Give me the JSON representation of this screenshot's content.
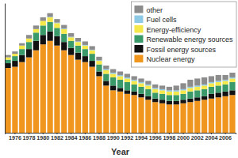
{
  "chart_data": {
    "type": "bar",
    "stacked": true,
    "x_label": "Year",
    "categories": [
      null,
      "1976",
      null,
      "1978",
      null,
      "1980",
      null,
      "1982",
      null,
      "1984",
      null,
      "1986",
      null,
      "1988",
      null,
      "1990",
      null,
      "1992",
      null,
      "1994",
      null,
      "1996",
      null,
      "1998",
      null,
      "2000",
      null,
      "2002",
      null,
      "2004",
      null,
      "2006",
      null
    ],
    "ylim": [
      0,
      110
    ],
    "tick_labels": "x",
    "legend": "upper right",
    "series": [
      {
        "name": "Nuclear energy",
        "color": "#f0961e",
        "values": [
          55,
          56,
          60,
          64,
          70,
          75,
          78,
          74,
          70,
          66,
          62,
          60,
          56,
          48,
          40,
          36,
          35,
          33,
          32,
          30,
          28,
          26,
          25,
          24,
          24,
          25,
          26,
          27,
          28,
          29,
          30,
          31,
          32
        ]
      },
      {
        "name": "Fossil energy sources",
        "color": "#111111",
        "values": [
          4,
          5,
          6,
          7,
          8,
          8,
          8,
          8,
          7,
          6,
          6,
          5,
          5,
          4,
          4,
          4,
          3,
          3,
          3,
          3,
          3,
          3,
          3,
          3,
          3,
          3,
          3,
          3,
          3,
          4,
          4,
          4,
          4
        ]
      },
      {
        "name": "Renewable energy sources",
        "color": "#3a9a6a",
        "values": [
          3,
          4,
          5,
          6,
          7,
          8,
          8,
          7,
          7,
          6,
          6,
          6,
          6,
          6,
          6,
          7,
          7,
          7,
          6,
          6,
          6,
          5,
          5,
          5,
          5,
          5,
          6,
          6,
          6,
          6,
          6,
          6,
          7
        ]
      },
      {
        "name": "Energy-efficiency",
        "color": "#f5e84a",
        "values": [
          2,
          2,
          3,
          3,
          3,
          4,
          4,
          4,
          4,
          3,
          3,
          3,
          3,
          3,
          3,
          3,
          3,
          3,
          3,
          3,
          3,
          3,
          3,
          3,
          3,
          3,
          3,
          3,
          3,
          3,
          3,
          3,
          3
        ]
      },
      {
        "name": "Fuel cells",
        "color": "#8ecae6",
        "values": [
          0,
          0,
          0,
          0,
          0,
          0,
          0.5,
          0.5,
          0.5,
          0.5,
          0.5,
          0.5,
          0.5,
          0.5,
          1,
          1,
          1,
          1,
          1,
          1,
          1,
          1,
          1,
          1,
          1,
          1,
          1,
          1,
          1,
          1,
          1,
          1,
          1
        ]
      },
      {
        "name": "other",
        "color": "#8c8c8c",
        "values": [
          2,
          2,
          2,
          3,
          3,
          3,
          3,
          3,
          3,
          3,
          3,
          3,
          3,
          3,
          3,
          3,
          3,
          3,
          3,
          3,
          3,
          3,
          3,
          3,
          4,
          5,
          6,
          6,
          6,
          5,
          5,
          4,
          4
        ]
      }
    ]
  }
}
